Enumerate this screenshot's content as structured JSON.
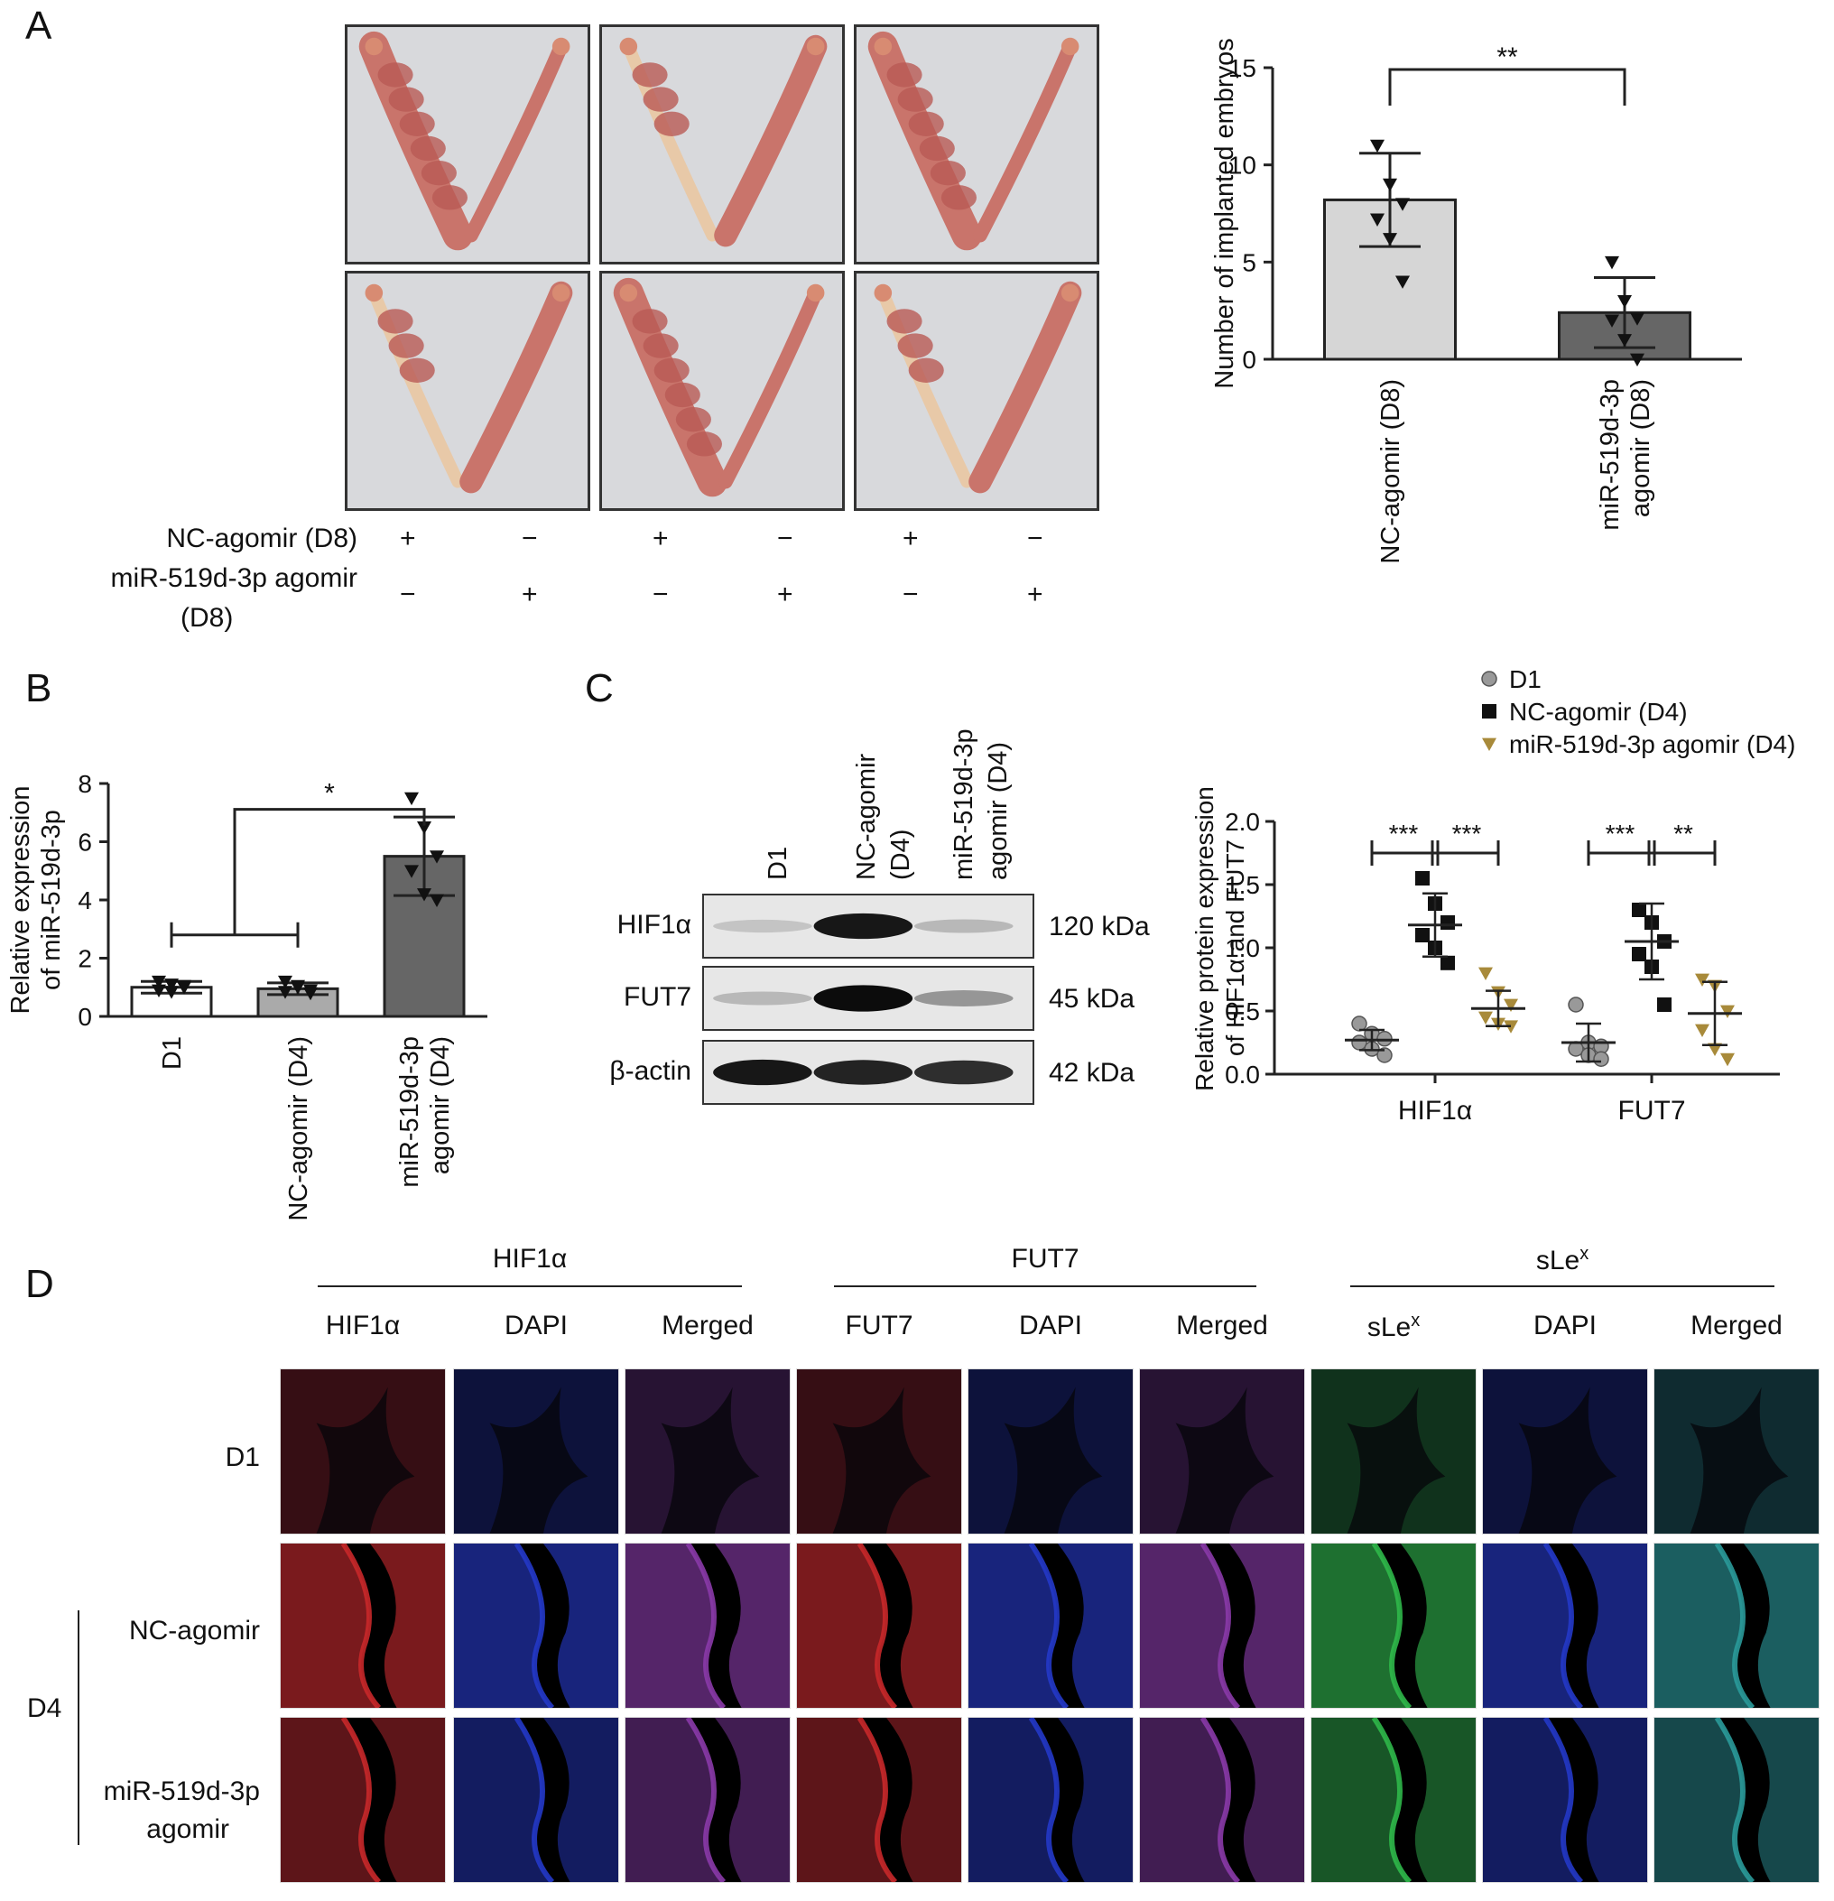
{
  "panels": {
    "A": "A",
    "B": "B",
    "C": "C",
    "D": "D"
  },
  "panelA": {
    "rows": [
      {
        "label": "NC-agomir (D8)",
        "signs": [
          "+",
          "−",
          "+",
          "−",
          "+",
          "−"
        ]
      },
      {
        "label": "miR-519d-3p agomir",
        "label2": "(D8)",
        "signs": [
          "−",
          "+",
          "−",
          "+",
          "−",
          "+"
        ]
      }
    ],
    "photo_desc_colors": {
      "background": "#d8d9dc",
      "tissue": "#c9746b",
      "horn": "#e8c9a8"
    }
  },
  "chartA": {
    "chart_data": {
      "type": "bar",
      "categories": [
        "NC-agomir (D8)",
        "miR-519d-3p agomir (D8)"
      ],
      "values": [
        8.2,
        2.4
      ],
      "errors": [
        2.4,
        1.8
      ],
      "points": [
        [
          11,
          9,
          8,
          7.2,
          6.2,
          4
        ],
        [
          5,
          3,
          2.1,
          2,
          1,
          0
        ]
      ],
      "ylabel": "Number of implanted embryos",
      "ylim": [
        0,
        15
      ],
      "yticks": [
        0,
        5,
        10,
        15
      ],
      "significance": "**",
      "colors": [
        "#d6d6d6",
        "#666666"
      ]
    }
  },
  "chartB": {
    "chart_data": {
      "type": "bar",
      "categories": [
        "D1",
        "NC-agomir (D4)",
        "miR-519d-3p agomir (D4)"
      ],
      "values": [
        1.0,
        0.95,
        5.5
      ],
      "errors": [
        0.2,
        0.2,
        1.35
      ],
      "points": [
        [
          1.2,
          1.1,
          1.0,
          0.9,
          0.85,
          1.05
        ],
        [
          1.2,
          1.0,
          0.9,
          0.85,
          1.05,
          0.8
        ],
        [
          7.5,
          6.5,
          5.5,
          5.0,
          4.2,
          4.0
        ]
      ],
      "ylabel": "Relative expression of miR-519d-3p",
      "ylim": [
        0,
        8
      ],
      "yticks": [
        0,
        2,
        4,
        6,
        8
      ],
      "significance": "*",
      "colors": [
        "#ffffff",
        "#aaaaaa",
        "#666666"
      ]
    }
  },
  "blot": {
    "lanes": [
      "D1",
      "NC-agomir (D4)",
      "miR-519d-3p agomir (D4)"
    ],
    "lane_lines": [
      [
        "D1"
      ],
      [
        "NC-agomir",
        "(D4)"
      ],
      [
        "miR-519d-3p",
        "agomir (D4)"
      ]
    ],
    "bands": [
      {
        "name": "HIF1α",
        "kda": "120 kDa",
        "intensity": [
          0.15,
          0.9,
          0.2
        ]
      },
      {
        "name": "FUT7",
        "kda": "45 kDa",
        "intensity": [
          0.2,
          0.95,
          0.35
        ]
      },
      {
        "name": "β-actin",
        "kda": "42 kDa",
        "intensity": [
          0.9,
          0.85,
          0.8
        ]
      }
    ]
  },
  "chartC": {
    "chart_data": {
      "type": "scatter",
      "groups": [
        "HIF1α",
        "FUT7"
      ],
      "series": [
        {
          "name": "D1",
          "color": "#999999",
          "marker": "circle",
          "means": [
            0.27,
            0.25
          ],
          "sd": [
            0.08,
            0.15
          ],
          "points": [
            [
              0.4,
              0.32,
              0.28,
              0.25,
              0.2,
              0.15
            ],
            [
              0.55,
              0.25,
              0.22,
              0.2,
              0.15,
              0.12
            ]
          ]
        },
        {
          "name": "NC-agomir (D4)",
          "color": "#111111",
          "marker": "square",
          "means": [
            1.18,
            1.05
          ],
          "sd": [
            0.25,
            0.3
          ],
          "points": [
            [
              1.55,
              1.35,
              1.2,
              1.1,
              1.0,
              0.88
            ],
            [
              1.3,
              1.2,
              1.05,
              0.95,
              0.85,
              0.55
            ]
          ]
        },
        {
          "name": "miR-519d-3p agomir (D4)",
          "color": "#a88a3a",
          "marker": "triangle",
          "means": [
            0.52,
            0.48
          ],
          "sd": [
            0.14,
            0.25
          ],
          "points": [
            [
              0.8,
              0.65,
              0.55,
              0.45,
              0.4,
              0.38
            ],
            [
              0.75,
              0.7,
              0.5,
              0.35,
              0.2,
              0.12
            ]
          ]
        }
      ],
      "ylabel": "Relative protein expression of HIF1α and FUT7",
      "ylim": [
        0,
        2.0
      ],
      "yticks": [
        "0.0",
        "0.5",
        "1.0",
        "1.5",
        "2.0"
      ],
      "significance": [
        [
          "***",
          "***"
        ],
        [
          "***",
          "**"
        ]
      ]
    }
  },
  "panelD": {
    "group_titles": [
      "HIF1α",
      "FUT7",
      "sLe"
    ],
    "group_title_sup": [
      "",
      "",
      "x"
    ],
    "col_labels": [
      "HIF1α",
      "DAPI",
      "Merged",
      "FUT7",
      "DAPI",
      "Merged",
      "sLe",
      "DAPI",
      "Merged"
    ],
    "col_label_sup": [
      "",
      "",
      "",
      "",
      "",
      "",
      "x",
      "",
      ""
    ],
    "row_labels": [
      "D1",
      "NC-agomir",
      "miR-519d-3p",
      "agomir"
    ],
    "d4_label": "D4",
    "channel_colors": {
      "red": "#c8282a",
      "blue": "#2438c8",
      "green": "#2fb84a",
      "merged": "#8a3aa8"
    }
  }
}
